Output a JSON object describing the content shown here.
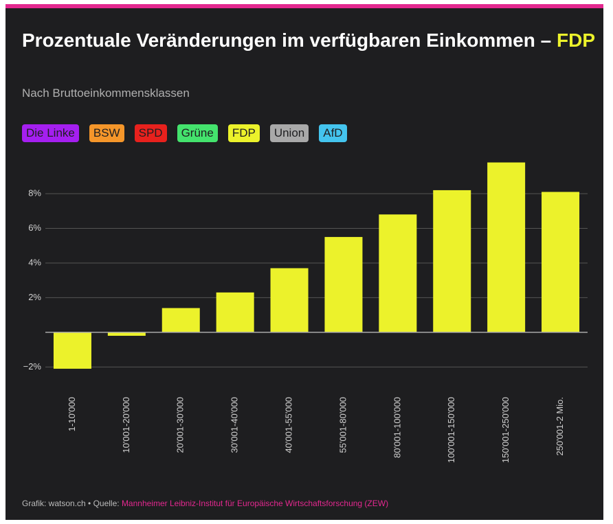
{
  "chart_data": {
    "type": "bar",
    "title": "Prozentuale Veränderungen im verfügbaren Einkommen –",
    "title_highlight": "FDP",
    "subtitle": "Nach Bruttoeinkommensklassen",
    "parties": [
      {
        "name": "Die Linke",
        "color": "#a51ff0"
      },
      {
        "name": "BSW",
        "color": "#f5962a"
      },
      {
        "name": "SPD",
        "color": "#e8211d"
      },
      {
        "name": "Grüne",
        "color": "#44e36d"
      },
      {
        "name": "FDP",
        "color": "#ecf22b"
      },
      {
        "name": "Union",
        "color": "#a9a9a9"
      },
      {
        "name": "AfD",
        "color": "#44c4ee"
      }
    ],
    "categories": [
      "1-10'000",
      "10'001-20'000",
      "20'001-30'000",
      "30'001-40'000",
      "40'001-55'000",
      "55'001-80'000",
      "80'001-100'000",
      "100'001-150'000",
      "150'001-250'000",
      "250'001-2 Mio."
    ],
    "values": [
      -2.1,
      -0.2,
      1.4,
      2.3,
      3.7,
      5.5,
      6.8,
      8.2,
      9.8,
      8.1
    ],
    "color": "#ecf22b",
    "ylim": [
      -2.5,
      10
    ],
    "yticks": [
      {
        "value": -2,
        "label": "−2%"
      },
      {
        "value": 2,
        "label": "2%"
      },
      {
        "value": 4,
        "label": "4%"
      },
      {
        "value": 6,
        "label": "6%"
      },
      {
        "value": 8,
        "label": "8%"
      }
    ],
    "grid": true,
    "source_prefix": "Grafik: watson.ch • Quelle:",
    "source": "Mannheimer Leibniz-Institut für Europäische Wirtschaftsforschung (ZEW)"
  }
}
